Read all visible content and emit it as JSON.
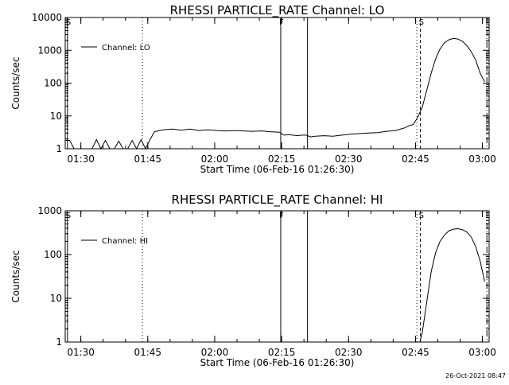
{
  "chart_data": [
    {
      "type": "line",
      "title": "RHESSI PARTICLE_RATE Channel: LO",
      "xlabel": "Start Time (06-Feb-16 01:26:30)",
      "ylabel": "Counts/sec",
      "yscale": "log",
      "ylim": [
        1,
        10000
      ],
      "xlim_minutes": [
        0,
        95
      ],
      "x_ticks": [
        {
          "min": 3.5,
          "label": "01:30"
        },
        {
          "min": 18.5,
          "label": "01:45"
        },
        {
          "min": 33.5,
          "label": "02:00"
        },
        {
          "min": 48.5,
          "label": "02:15"
        },
        {
          "min": 63.5,
          "label": "02:30"
        },
        {
          "min": 78.5,
          "label": "02:45"
        },
        {
          "min": 93.5,
          "label": "03:00"
        }
      ],
      "y_ticks": [
        {
          "value": 1,
          "label": "1"
        },
        {
          "value": 10,
          "label": "10"
        },
        {
          "value": 100,
          "label": "100"
        },
        {
          "value": 1000,
          "label": "1000"
        },
        {
          "value": 10000,
          "label": "10000"
        }
      ],
      "legend": "Channel: LO",
      "series": [
        {
          "name": "Channel: LO",
          "x": [
            0,
            1,
            2,
            3,
            4,
            5,
            6,
            7,
            8,
            9,
            10,
            11,
            12,
            13,
            14,
            15,
            16,
            17,
            18,
            19,
            20,
            22,
            24,
            26,
            28,
            30,
            32,
            34,
            36,
            38,
            40,
            42,
            44,
            46,
            48,
            49,
            50,
            51,
            52,
            53,
            54,
            55,
            56,
            58,
            60,
            62,
            64,
            66,
            68,
            70,
            72,
            74,
            76,
            77,
            78,
            79,
            80,
            81,
            82,
            83,
            84,
            85,
            86,
            87,
            88,
            89,
            90,
            91,
            92,
            93,
            94
          ],
          "values": [
            1.8,
            1.8,
            1,
            1,
            1,
            1,
            1,
            1.9,
            1,
            1.8,
            1,
            1,
            1.7,
            1,
            1,
            1.8,
            1,
            1.9,
            1,
            1.9,
            3.3,
            3.8,
            4,
            3.7,
            4,
            3.6,
            3.8,
            3.6,
            3.5,
            3.6,
            3.5,
            3.4,
            3.5,
            3.3,
            3.2,
            2.6,
            2.7,
            2.6,
            2.5,
            2.6,
            2.6,
            2.3,
            2.4,
            2.5,
            2.4,
            2.6,
            2.8,
            2.9,
            3,
            3.1,
            3.4,
            3.6,
            4.3,
            5,
            5.5,
            9,
            18,
            60,
            200,
            550,
            1100,
            1700,
            2100,
            2300,
            2200,
            1900,
            1400,
            900,
            500,
            200,
            110
          ]
        }
      ],
      "markers": [
        {
          "min": 0.5,
          "label": "S",
          "style": "solid"
        },
        {
          "min": 17.3,
          "label": "",
          "style": "dotted"
        },
        {
          "min": 48.3,
          "label": "F",
          "style": "solid"
        },
        {
          "min": 54.3,
          "label": "",
          "style": "solid"
        },
        {
          "min": 78.8,
          "label": "",
          "style": "dotted"
        },
        {
          "min": 79.6,
          "label": "S",
          "style": "dashed"
        },
        {
          "min": 94.5,
          "label": "",
          "style": "dashdot"
        }
      ]
    },
    {
      "type": "line",
      "title": "RHESSI PARTICLE_RATE Channel: HI",
      "xlabel": "Start Time (06-Feb-16 01:26:30)",
      "ylabel": "Counts/sec",
      "yscale": "log",
      "ylim": [
        1,
        1000
      ],
      "xlim_minutes": [
        0,
        95
      ],
      "x_ticks": [
        {
          "min": 3.5,
          "label": "01:30"
        },
        {
          "min": 18.5,
          "label": "01:45"
        },
        {
          "min": 33.5,
          "label": "02:00"
        },
        {
          "min": 48.5,
          "label": "02:15"
        },
        {
          "min": 63.5,
          "label": "02:30"
        },
        {
          "min": 78.5,
          "label": "02:45"
        },
        {
          "min": 93.5,
          "label": "03:00"
        }
      ],
      "y_ticks": [
        {
          "value": 1,
          "label": "1"
        },
        {
          "value": 10,
          "label": "10"
        },
        {
          "value": 100,
          "label": "100"
        },
        {
          "value": 1000,
          "label": "1000"
        }
      ],
      "legend": "Channel: HI",
      "series": [
        {
          "name": "Channel: HI",
          "x": [
            79.5,
            80,
            81,
            82,
            83,
            84,
            85,
            86,
            87,
            88,
            89,
            90,
            91,
            92,
            93,
            94
          ],
          "values": [
            1,
            1.6,
            8,
            40,
            110,
            200,
            280,
            350,
            380,
            390,
            370,
            330,
            250,
            150,
            70,
            24
          ]
        }
      ],
      "markers": [
        {
          "min": 0.5,
          "label": "S",
          "style": "solid"
        },
        {
          "min": 17.3,
          "label": "",
          "style": "dotted"
        },
        {
          "min": 48.3,
          "label": "F",
          "style": "solid"
        },
        {
          "min": 54.3,
          "label": "",
          "style": "solid"
        },
        {
          "min": 78.8,
          "label": "",
          "style": "dotted"
        },
        {
          "min": 79.6,
          "label": "S",
          "style": "dashed"
        },
        {
          "min": 94.5,
          "label": "",
          "style": "dashdot"
        }
      ]
    }
  ],
  "footer": {
    "timestamp": "26-Oct-2021 08:47"
  }
}
